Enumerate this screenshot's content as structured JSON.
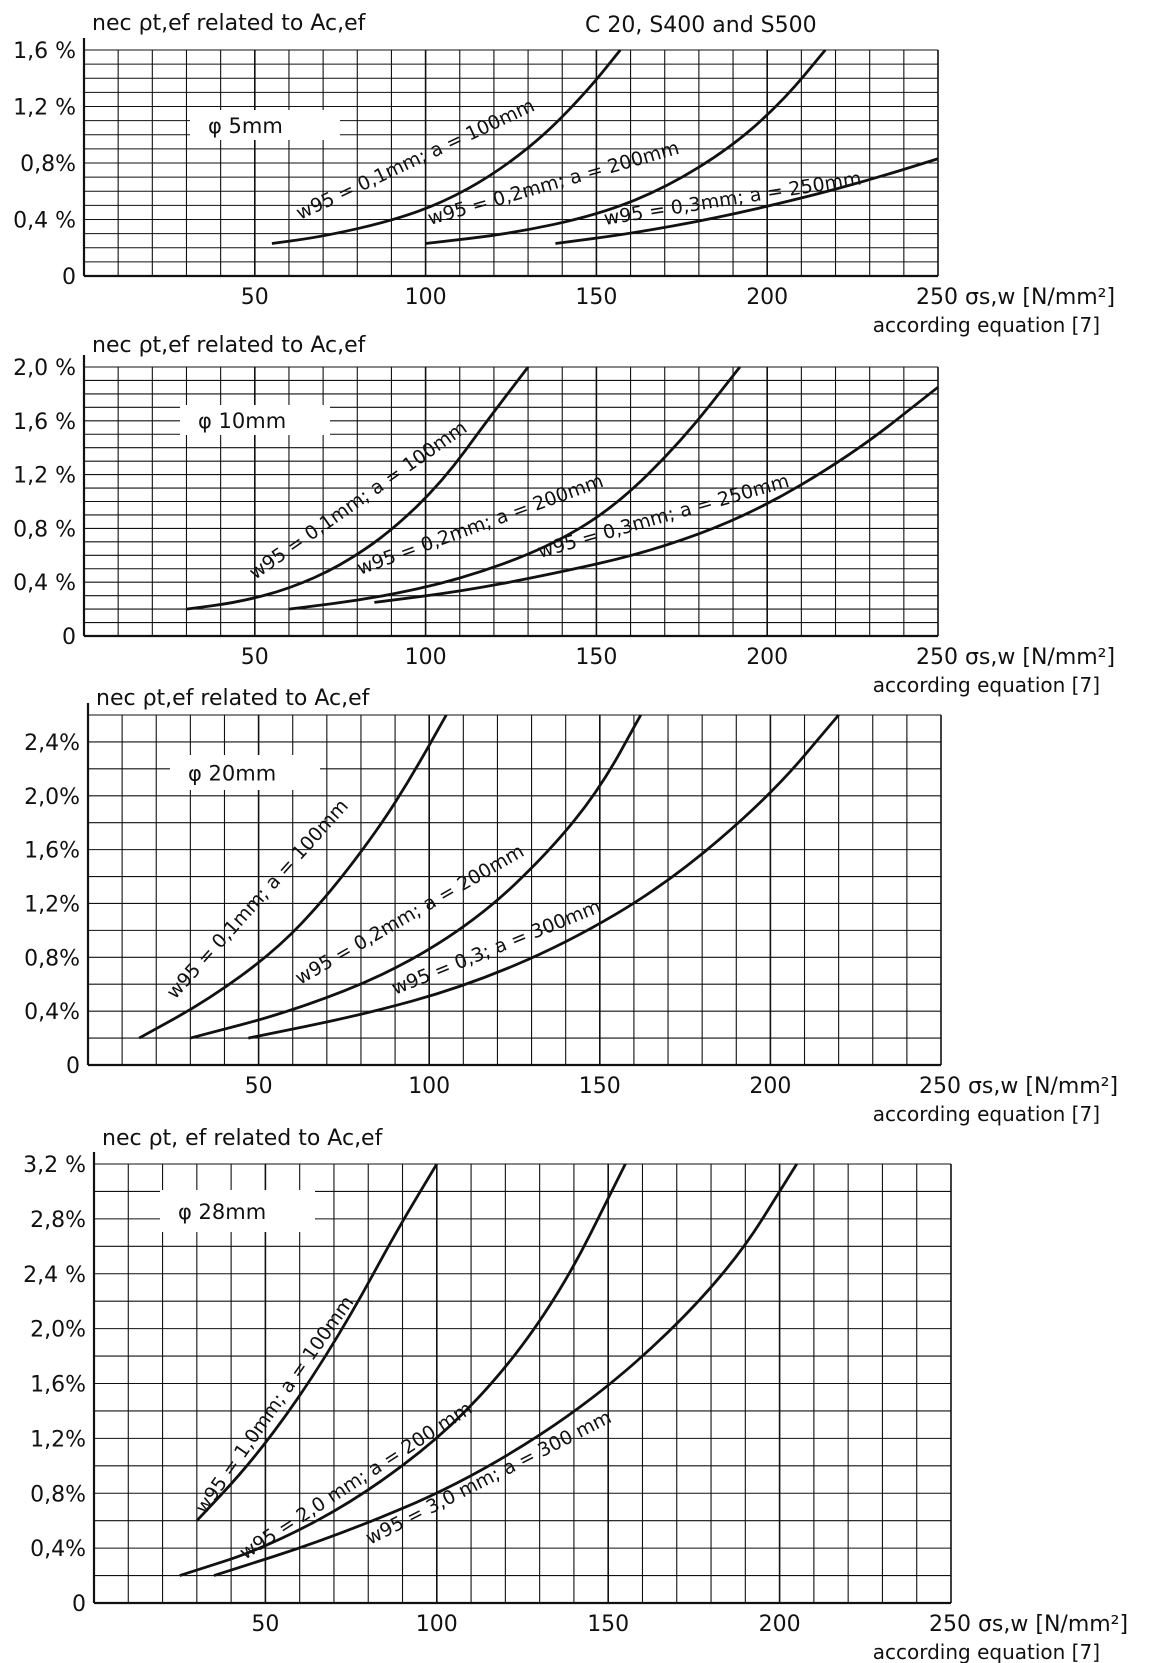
{
  "header": {
    "text": "C 20, S400 and S500"
  },
  "chart_data": [
    {
      "type": "line",
      "diameter_label": "φ 5mm",
      "ylabel": "nec ρt,ef related to Ac,ef",
      "xlabel": "250 σs,w [N/mm²]",
      "xlabel_note": "according equation [7]",
      "xlim": [
        0,
        250
      ],
      "ylim": [
        0,
        1.6
      ],
      "x_ticks": [
        "50",
        "100",
        "150",
        "200",
        "250"
      ],
      "y_ticks": [
        {
          "v": 0,
          "label": "0"
        },
        {
          "v": 0.4,
          "label": "0,4 %"
        },
        {
          "v": 0.8,
          "label": "0,8%"
        },
        {
          "v": 1.2,
          "label": "1,2 %"
        },
        {
          "v": 1.6,
          "label": "1,6 %"
        }
      ],
      "grid": true,
      "series": [
        {
          "name": "w95 = 0,1mm; a = 100mm",
          "x": [
            55,
            70,
            90,
            105,
            120,
            135,
            148,
            157
          ],
          "y": [
            0.23,
            0.28,
            0.39,
            0.52,
            0.72,
            1.0,
            1.33,
            1.6
          ]
        },
        {
          "name": "w95 = 0,2mm; a = 200mm",
          "x": [
            100,
            125,
            150,
            170,
            190,
            205,
            217
          ],
          "y": [
            0.23,
            0.3,
            0.43,
            0.62,
            0.92,
            1.25,
            1.6
          ]
        },
        {
          "name": "w95 = 0,3mm; a = 250mm",
          "x": [
            138,
            160,
            185,
            210,
            230,
            250
          ],
          "y": [
            0.23,
            0.3,
            0.41,
            0.55,
            0.68,
            0.83
          ]
        }
      ]
    },
    {
      "type": "line",
      "diameter_label": "φ 10mm",
      "ylabel": "nec ρt,ef related to Ac,ef",
      "xlabel": "250 σs,w [N/mm²]",
      "xlabel_note": "according equation [7]",
      "xlim": [
        0,
        250
      ],
      "ylim": [
        0,
        2.0
      ],
      "x_ticks": [
        "50",
        "100",
        "150",
        "200",
        "250"
      ],
      "y_ticks": [
        {
          "v": 0,
          "label": "0"
        },
        {
          "v": 0.4,
          "label": "0,4 %"
        },
        {
          "v": 0.8,
          "label": "0,8 %"
        },
        {
          "v": 1.2,
          "label": "1,2 %"
        },
        {
          "v": 1.6,
          "label": "1,6 %"
        },
        {
          "v": 2.0,
          "label": "2,0 %"
        }
      ],
      "grid": true,
      "series": [
        {
          "name": "w95 = 0,1mm; a = 100mm",
          "x": [
            30,
            45,
            60,
            75,
            90,
            105,
            118,
            130
          ],
          "y": [
            0.2,
            0.25,
            0.35,
            0.52,
            0.78,
            1.15,
            1.6,
            2.0
          ]
        },
        {
          "name": "w95 = 0,2mm; a = 200mm",
          "x": [
            60,
            85,
            110,
            135,
            155,
            175,
            192
          ],
          "y": [
            0.2,
            0.28,
            0.42,
            0.65,
            0.95,
            1.45,
            2.0
          ]
        },
        {
          "name": "w95 = 0,3mm; a = 250mm",
          "x": [
            85,
            110,
            135,
            165,
            195,
            225,
            250
          ],
          "y": [
            0.25,
            0.33,
            0.45,
            0.62,
            0.9,
            1.35,
            1.85
          ]
        }
      ]
    },
    {
      "type": "line",
      "diameter_label": "φ 20mm",
      "ylabel": "nec ρt,ef related to Ac,ef",
      "xlabel": "250 σs,w [N/mm²]",
      "xlabel_note": "according equation [7]",
      "xlim": [
        0,
        250
      ],
      "ylim": [
        0,
        2.6
      ],
      "x_ticks": [
        "50",
        "100",
        "150",
        "200",
        "250"
      ],
      "y_ticks": [
        {
          "v": 0,
          "label": "0"
        },
        {
          "v": 0.4,
          "label": "0,4%"
        },
        {
          "v": 0.8,
          "label": "0,8%"
        },
        {
          "v": 1.2,
          "label": "1,2%"
        },
        {
          "v": 1.6,
          "label": "1,6%"
        },
        {
          "v": 2.0,
          "label": "2,0%"
        },
        {
          "v": 2.4,
          "label": "2,4%"
        }
      ],
      "grid": true,
      "series": [
        {
          "name": "w95 = 0,1mm; a = 100mm",
          "x": [
            15,
            35,
            55,
            70,
            85,
            95,
            105
          ],
          "y": [
            0.2,
            0.48,
            0.85,
            1.25,
            1.75,
            2.15,
            2.6
          ]
        },
        {
          "name": "w95 = 0,2mm; a = 200mm",
          "x": [
            30,
            60,
            90,
            115,
            135,
            150,
            162
          ],
          "y": [
            0.2,
            0.4,
            0.7,
            1.1,
            1.58,
            2.05,
            2.6
          ]
        },
        {
          "name": "w95 = 0,3; a = 300mm",
          "x": [
            47,
            80,
            110,
            140,
            170,
            200,
            220
          ],
          "y": [
            0.2,
            0.37,
            0.58,
            0.9,
            1.35,
            2.0,
            2.6
          ]
        }
      ]
    },
    {
      "type": "line",
      "diameter_label": "φ 28mm",
      "ylabel": "nec ρt, ef related to Ac,ef",
      "xlabel": "250 σs,w [N/mm²]",
      "xlabel_note": "according equation [7]",
      "xlim": [
        0,
        250
      ],
      "ylim": [
        0,
        3.2
      ],
      "x_ticks": [
        "50",
        "100",
        "150",
        "200",
        "250"
      ],
      "y_ticks": [
        {
          "v": 0,
          "label": "0"
        },
        {
          "v": 0.4,
          "label": "0,4%"
        },
        {
          "v": 0.8,
          "label": "0,8%"
        },
        {
          "v": 1.2,
          "label": "1,2%"
        },
        {
          "v": 1.6,
          "label": "1,6%"
        },
        {
          "v": 2.0,
          "label": "2,0%"
        },
        {
          "v": 2.4,
          "label": "2,4 %"
        },
        {
          "v": 2.8,
          "label": "2,8%"
        },
        {
          "v": 3.2,
          "label": "3,2 %"
        }
      ],
      "grid": true,
      "series": [
        {
          "name": "w95 = 1,0mm; a = 100mm",
          "x": [
            30,
            45,
            60,
            75,
            88,
            100
          ],
          "y": [
            0.6,
            1.0,
            1.5,
            2.1,
            2.7,
            3.2
          ]
        },
        {
          "name": "w95 = 2,0 mm; a = 200 mm",
          "x": [
            25,
            50,
            80,
            110,
            135,
            155
          ],
          "y": [
            0.2,
            0.4,
            0.8,
            1.4,
            2.2,
            3.2
          ]
        },
        {
          "name": "w95 = 3,0 mm; a = 300 mm",
          "x": [
            35,
            70,
            110,
            150,
            185,
            205
          ],
          "y": [
            0.2,
            0.48,
            0.9,
            1.55,
            2.4,
            3.2
          ]
        }
      ]
    }
  ]
}
